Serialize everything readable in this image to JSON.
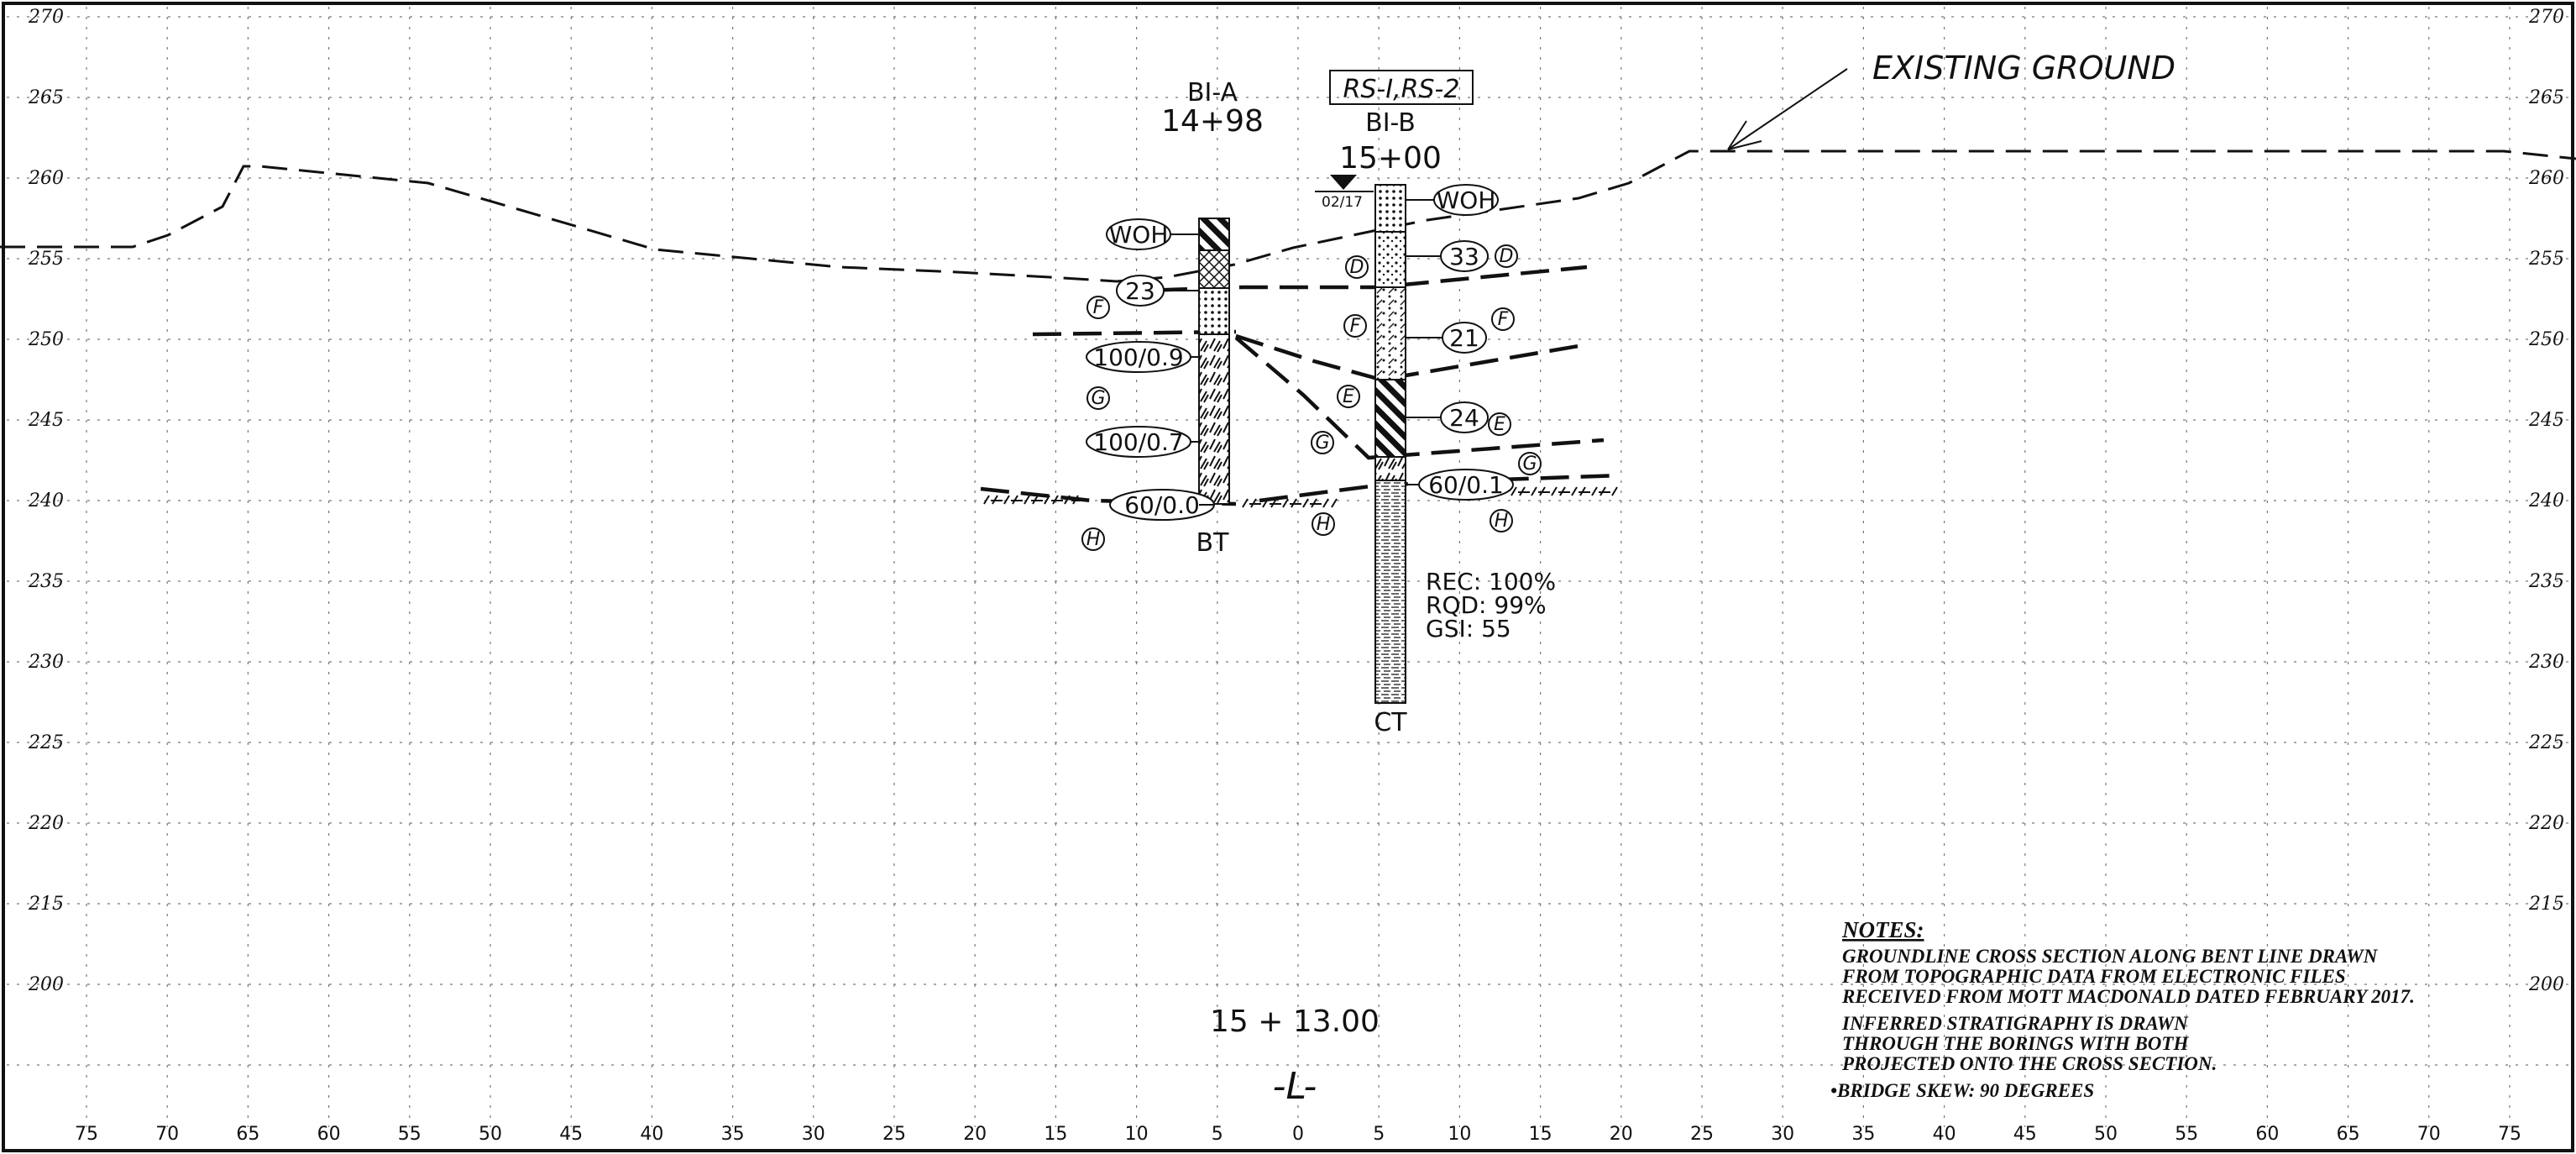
{
  "elevation_labels": [
    "270",
    "265",
    "260",
    "255",
    "250",
    "245",
    "240",
    "235",
    "230",
    "225",
    "220",
    "215",
    "200"
  ],
  "offset_labels": [
    "75",
    "70",
    "65",
    "60",
    "55",
    "50",
    "45",
    "40",
    "35",
    "30",
    "25",
    "20",
    "15",
    "10",
    "5",
    "0",
    "5",
    "10",
    "15",
    "20",
    "25",
    "30",
    "35",
    "40",
    "45",
    "50",
    "55",
    "60",
    "65",
    "70",
    "75"
  ],
  "existing_ground_label": "EXISTING GROUND",
  "boring_a": {
    "id": "BI-A",
    "station": "14+98",
    "bottom_label": "BT"
  },
  "boring_b": {
    "id": "BI-B",
    "station": "15+00",
    "rs_label": "RS-I,RS-2",
    "bottom_label": "CT",
    "water_date": "02/17"
  },
  "blow_counts_a": [
    "WOH",
    "23",
    "100/0.9",
    "100/0.7",
    "60/0.0"
  ],
  "blow_counts_b": [
    "WOH",
    "33",
    "21",
    "24",
    "60/0.1"
  ],
  "strata_letters": [
    "F",
    "G",
    "H",
    "D",
    "F",
    "E",
    "G",
    "H",
    "D",
    "F",
    "E",
    "G",
    "H"
  ],
  "rock_core": {
    "rec": "REC: 100%",
    "rqd": "RQD: 99%",
    "gsi": "GSI: 55"
  },
  "section_station": "15 + 13.00",
  "alignment_label": "-L-",
  "notes": {
    "heading": "NOTES:",
    "lines": [
      "GROUNDLINE  CROSS  SECTION  ALONG  BENT  LINE  DRAWN",
      "FROM   TOPOGRAPHIC  DATA  FROM   ELECTRONIC  FILES",
      "RECEIVED  FROM   MOTT  MACDONALD  DATED  FEBRUARY  2017.",
      "INFERRED   STRATIGRAPHY  IS  DRAWN",
      "THROUGH   THE  BORINGS  WITH  BOTH",
      "PROJECTED  ONTO  THE  CROSS  SECTION.",
      "•BRIDGE  SKEW: 90 DEGREES"
    ]
  }
}
